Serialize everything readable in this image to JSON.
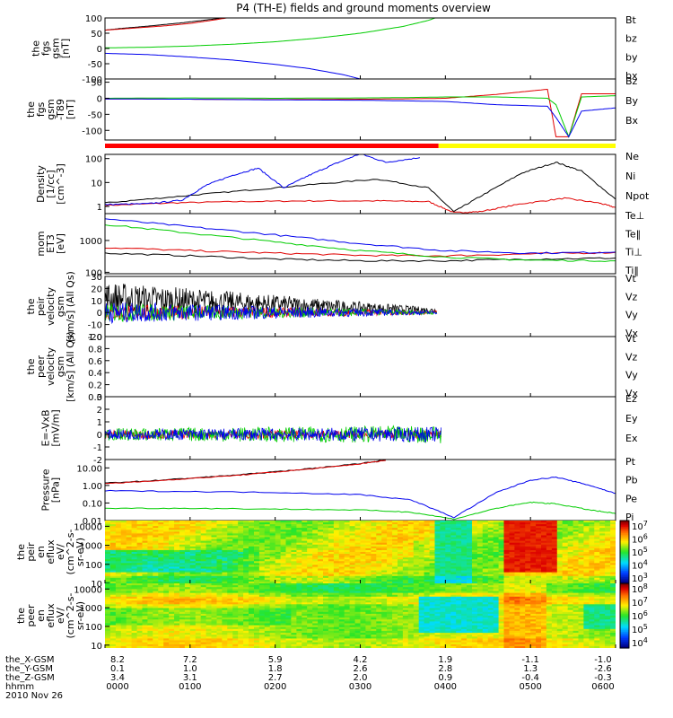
{
  "title": "P4 (TH-E) fields and ground moments overview",
  "chart_data": [
    {
      "type": "line",
      "ylabel_lines": [
        "the",
        "fgs",
        "gsm",
        "[nT]"
      ],
      "ylim": [
        -100,
        100
      ],
      "yticks": [
        "100",
        "50",
        "0",
        "-50",
        "-100"
      ],
      "legend": [
        "Bt",
        "bz",
        "by",
        "bx"
      ],
      "colors": [
        "#000000",
        "#e00000",
        "#00cc00",
        "#0000ee"
      ],
      "series": [
        {
          "x": [
            0,
            0.2,
            0.5,
            0.9,
            1.3,
            1.6
          ],
          "values": [
            60,
            66,
            73,
            84,
            97,
            110
          ]
        },
        {
          "x": [
            0,
            0.3,
            0.7,
            1.0,
            1.3,
            1.6
          ],
          "values": [
            60,
            66,
            74,
            82,
            94,
            108
          ]
        },
        {
          "x": [
            0,
            0.5,
            1.0,
            1.5,
            2.0,
            2.5,
            3.0,
            3.5,
            3.8,
            3.98
          ],
          "values": [
            2,
            4,
            8,
            14,
            22,
            34,
            50,
            72,
            92,
            110
          ]
        },
        {
          "x": [
            0,
            0.5,
            1.0,
            1.5,
            2.0,
            2.4,
            2.8,
            3.0
          ],
          "values": [
            -16,
            -20,
            -28,
            -38,
            -52,
            -66,
            -86,
            -100
          ]
        }
      ]
    },
    {
      "type": "line",
      "ylabel_lines": [
        "the",
        "fgs",
        "gsm",
        "-T89",
        "[nT]"
      ],
      "ylim": [
        -130,
        60
      ],
      "yticks": [
        "50",
        "0",
        "-50",
        "-100"
      ],
      "legend": [
        "Bz",
        "By",
        "Bx"
      ],
      "colors": [
        "#e00000",
        "#00cc00",
        "#0000ee"
      ],
      "series": [
        {
          "x": [
            0,
            1.0,
            2.0,
            3.0,
            3.5,
            4.0,
            4.6,
            5.2,
            5.3,
            5.45,
            5.6,
            6.0
          ],
          "values": [
            -2,
            -3,
            -4,
            -3,
            -2,
            0,
            12,
            28,
            -120,
            -120,
            14,
            14
          ]
        },
        {
          "x": [
            0,
            1.0,
            2.0,
            3.0,
            3.5,
            4.0,
            4.6,
            5.2,
            5.3,
            5.45,
            5.6,
            6.0
          ],
          "values": [
            0,
            1,
            0,
            1,
            2,
            4,
            4,
            0,
            -20,
            -120,
            4,
            8
          ]
        },
        {
          "x": [
            0,
            1.0,
            2.0,
            3.0,
            3.5,
            4.0,
            4.6,
            5.2,
            5.3,
            5.45,
            5.6,
            6.0
          ],
          "values": [
            -2,
            -3,
            -5,
            -6,
            -8,
            -10,
            -20,
            -25,
            -60,
            -120,
            -40,
            -30
          ]
        }
      ]
    },
    {
      "type": "line",
      "ylog": true,
      "ylabel_lines": [
        "Density",
        "[1/cc]",
        "[cm^-3]"
      ],
      "ylim": [
        0.5,
        150
      ],
      "yticks": [
        "100",
        "10",
        "1"
      ],
      "legend": [
        "Ne",
        "Ni",
        "Npot"
      ],
      "colors": [
        "#e00000",
        "#000000",
        "#0000ee"
      ],
      "series": [
        {
          "x": [
            0,
            0.8,
            1.6,
            2.4,
            3.2,
            3.8,
            4.1,
            4.4,
            4.9,
            5.4,
            5.8,
            6.0
          ],
          "values": [
            1.1,
            1.4,
            1.6,
            1.7,
            1.7,
            1.6,
            0.55,
            0.6,
            1.3,
            2.2,
            1.4,
            0.9
          ]
        },
        {
          "x": [
            0,
            0.8,
            1.6,
            2.4,
            3.2,
            3.8,
            4.1,
            4.4,
            4.9,
            5.3,
            5.6,
            6.0
          ],
          "values": [
            1.4,
            2.5,
            4.5,
            8.0,
            14,
            6.0,
            0.6,
            2.5,
            25,
            70,
            30,
            2.0
          ]
        },
        {
          "x": [
            0,
            0.5,
            0.9,
            1.2,
            1.5,
            1.8,
            2.1,
            2.4,
            2.7,
            3.0,
            3.3,
            3.7
          ],
          "values": [
            1.2,
            1.3,
            1.8,
            8.0,
            20,
            40,
            6.0,
            20,
            60,
            160,
            70,
            110
          ]
        }
      ]
    },
    {
      "type": "line",
      "ylog": true,
      "ylabel_lines": [
        "mom",
        "ET3",
        "[eV]"
      ],
      "ylim": [
        90,
        7000
      ],
      "yticks": [
        "1000",
        "100"
      ],
      "legend": [
        "Te⊥",
        "Te‖",
        "Ti⊥",
        "Ti‖"
      ],
      "colors": [
        "#e00000",
        "#000000",
        "#0000ee",
        "#00cc00"
      ],
      "series": [
        {
          "x": [
            0,
            1.0,
            2.0,
            3.0,
            4.0,
            5.0,
            6.0
          ],
          "values": [
            600,
            480,
            400,
            340,
            330,
            380,
            420
          ]
        },
        {
          "x": [
            0,
            1.0,
            2.0,
            3.0,
            4.0,
            5.0,
            6.0
          ],
          "values": [
            400,
            330,
            260,
            230,
            230,
            260,
            280
          ]
        },
        {
          "x": [
            0,
            1.0,
            2.0,
            3.0,
            4.0,
            5.0,
            6.0
          ],
          "values": [
            4800,
            2700,
            1500,
            800,
            480,
            400,
            430
          ]
        },
        {
          "x": [
            0,
            1.0,
            2.0,
            3.0,
            4.0,
            5.0,
            6.0
          ],
          "values": [
            3200,
            1700,
            900,
            480,
            300,
            240,
            230
          ]
        }
      ]
    },
    {
      "type": "line",
      "ylabel_lines": [
        "the",
        "peir",
        "velocity",
        "gsm",
        "[km/s] (All Qs)"
      ],
      "ylim": [
        -20,
        30
      ],
      "yticks": [
        "30",
        "20",
        "10",
        "0",
        "-10",
        "-20"
      ],
      "legend": [
        "Vt",
        "Vz",
        "Vy",
        "Vx"
      ],
      "colors": [
        "#000000",
        "#e00000",
        "#00cc00",
        "#0000ee"
      ],
      "noise": [
        {
          "base": 12,
          "amp": [
            14,
            2
          ]
        },
        {
          "base": 0,
          "amp": [
            7,
            1.5
          ]
        },
        {
          "base": 0,
          "amp": [
            8,
            1.5
          ]
        },
        {
          "base": 0,
          "amp": [
            9,
            1.5
          ]
        }
      ],
      "x_end": 3.9
    },
    {
      "type": "line",
      "ylabel_lines": [
        "the",
        "peer",
        "velocity",
        "gsm",
        "[km/s] (All Qs)"
      ],
      "ylim": [
        0,
        1
      ],
      "yticks": [
        "1.0",
        "0.8",
        "0.6",
        "0.4",
        "0.2",
        "0.0"
      ],
      "legend": [
        "Vt",
        "Vz",
        "Vy",
        "Vx"
      ],
      "colors": [
        "#000000",
        "#e00000",
        "#00cc00",
        "#0000ee"
      ],
      "series": []
    },
    {
      "type": "line",
      "ylabel_lines": [
        "E=-VxB",
        "[mV/m]"
      ],
      "ylim": [
        -2,
        3
      ],
      "yticks": [
        "3",
        "2",
        "1",
        "0",
        "-1",
        "-2"
      ],
      "legend": [
        "Ez",
        "Ey",
        "Ex"
      ],
      "colors": [
        "#e00000",
        "#00cc00",
        "#0000ee"
      ],
      "noise": [
        {
          "base": 0,
          "amp": [
            0.35,
            0.3
          ]
        },
        {
          "base": 0,
          "amp": [
            0.5,
            0.7
          ]
        },
        {
          "base": 0,
          "amp": [
            0.4,
            0.6
          ]
        }
      ],
      "x_end": 3.95
    },
    {
      "type": "line",
      "ylog": true,
      "ylabel_lines": [
        "Pressure",
        "[nPa]"
      ],
      "ylim": [
        0.01,
        30
      ],
      "yticks": [
        "10.00",
        "1.00",
        "0.10",
        "0.01"
      ],
      "legend": [
        "Pt",
        "Pb",
        "Pe",
        "Pi"
      ],
      "colors": [
        "#000000",
        "#e00000",
        "#00cc00",
        "#0000ee"
      ],
      "series": [
        {
          "x": [
            0,
            0.5,
            1.0,
            1.5,
            2.0,
            2.5,
            3.0,
            3.3
          ],
          "values": [
            1.4,
            1.8,
            2.6,
            3.8,
            6.0,
            10,
            18,
            28
          ]
        },
        {
          "x": [
            0,
            0.5,
            1.0,
            1.5,
            2.0,
            2.5,
            3.0,
            3.3
          ],
          "values": [
            1.3,
            1.7,
            2.5,
            3.6,
            5.8,
            9.5,
            17,
            27
          ]
        },
        {
          "x": [
            0,
            1.0,
            2.0,
            3.0,
            3.6,
            4.1,
            4.6,
            5.0,
            5.3,
            5.7,
            6.0
          ],
          "values": [
            0.05,
            0.05,
            0.045,
            0.04,
            0.03,
            0.012,
            0.05,
            0.11,
            0.09,
            0.04,
            0.025
          ]
        },
        {
          "x": [
            0,
            1.0,
            2.0,
            3.0,
            3.6,
            4.1,
            4.6,
            5.0,
            5.3,
            5.7,
            6.0
          ],
          "values": [
            0.5,
            0.45,
            0.4,
            0.3,
            0.15,
            0.015,
            0.4,
            2.0,
            3.0,
            1.0,
            0.35
          ]
        }
      ]
    },
    {
      "type": "heatmap",
      "ylabel_lines": [
        "the",
        "peir",
        "en",
        "eflux",
        "eV/",
        "(cm^2-s-",
        "sr-eV)"
      ],
      "ylim": [
        10,
        20000
      ],
      "ylog": true,
      "yticks": [
        "10000",
        "1000",
        "100",
        "10"
      ],
      "colorbar_ticks": [
        "10^7",
        "10^6",
        "10^5",
        "10^4",
        "10^3"
      ]
    },
    {
      "type": "heatmap",
      "ylabel_lines": [
        "the",
        "peer",
        "en",
        "eflux",
        "eV/",
        "(cm^2-s-",
        "sr-eV)"
      ],
      "ylim": [
        7,
        20000
      ],
      "ylog": true,
      "yticks": [
        "10000",
        "1000",
        "100",
        "10"
      ],
      "colorbar_ticks": [
        "10^8",
        "10^7",
        "10^6",
        "10^5",
        "10^4"
      ]
    }
  ],
  "ephemeris": {
    "labels": [
      "the_X-GSM",
      "the_Y-GSM",
      "the_Z-GSM",
      "hhmm"
    ],
    "date": "2010 Nov 26",
    "columns": [
      [
        "8.2",
        "0.1",
        "3.4",
        "0000"
      ],
      [
        "7.2",
        "1.0",
        "3.1",
        "0100"
      ],
      [
        "5.9",
        "1.8",
        "2.7",
        "0200"
      ],
      [
        "4.2",
        "2.6",
        "2.0",
        "0300"
      ],
      [
        "1.9",
        "2.8",
        "0.9",
        "0400"
      ],
      [
        "-1.1",
        "1.3",
        "-0.4",
        "0500"
      ],
      [
        "-1.0",
        "-2.6",
        "-0.3",
        "0600"
      ]
    ]
  },
  "mode_bar": {
    "colors": [
      "#ff0000",
      "#ffff00"
    ],
    "switch_hours": 3.92
  }
}
